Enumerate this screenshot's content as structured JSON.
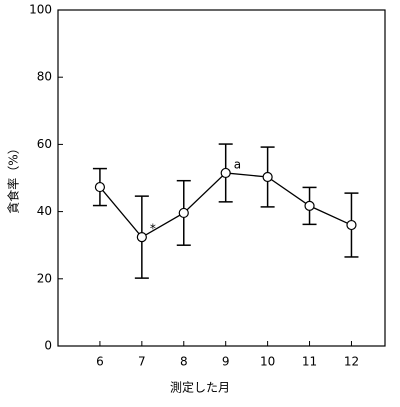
{
  "chart_data": {
    "type": "line",
    "x_label": "測定した月",
    "y_label": "貪食率（%）",
    "x": [
      6,
      7,
      8,
      9,
      10,
      11,
      12
    ],
    "series": [
      {
        "color": "#000000",
        "values": [
          47.3,
          32.4,
          39.6,
          51.5,
          50.3,
          41.7,
          36
        ],
        "errors": [
          5.5,
          12.2,
          9.6,
          8.6,
          8.9,
          5.5,
          9.5
        ]
      }
    ],
    "annotations": [
      {
        "text": "*",
        "x": 7
      },
      {
        "text": "a",
        "x": 9
      }
    ],
    "xlim": [
      5,
      12.8
    ],
    "xticks": [
      6,
      7,
      8,
      9,
      10,
      11,
      12
    ],
    "ylim": [
      0,
      100
    ],
    "yticks": [
      0,
      20,
      40,
      60,
      80,
      100
    ]
  }
}
